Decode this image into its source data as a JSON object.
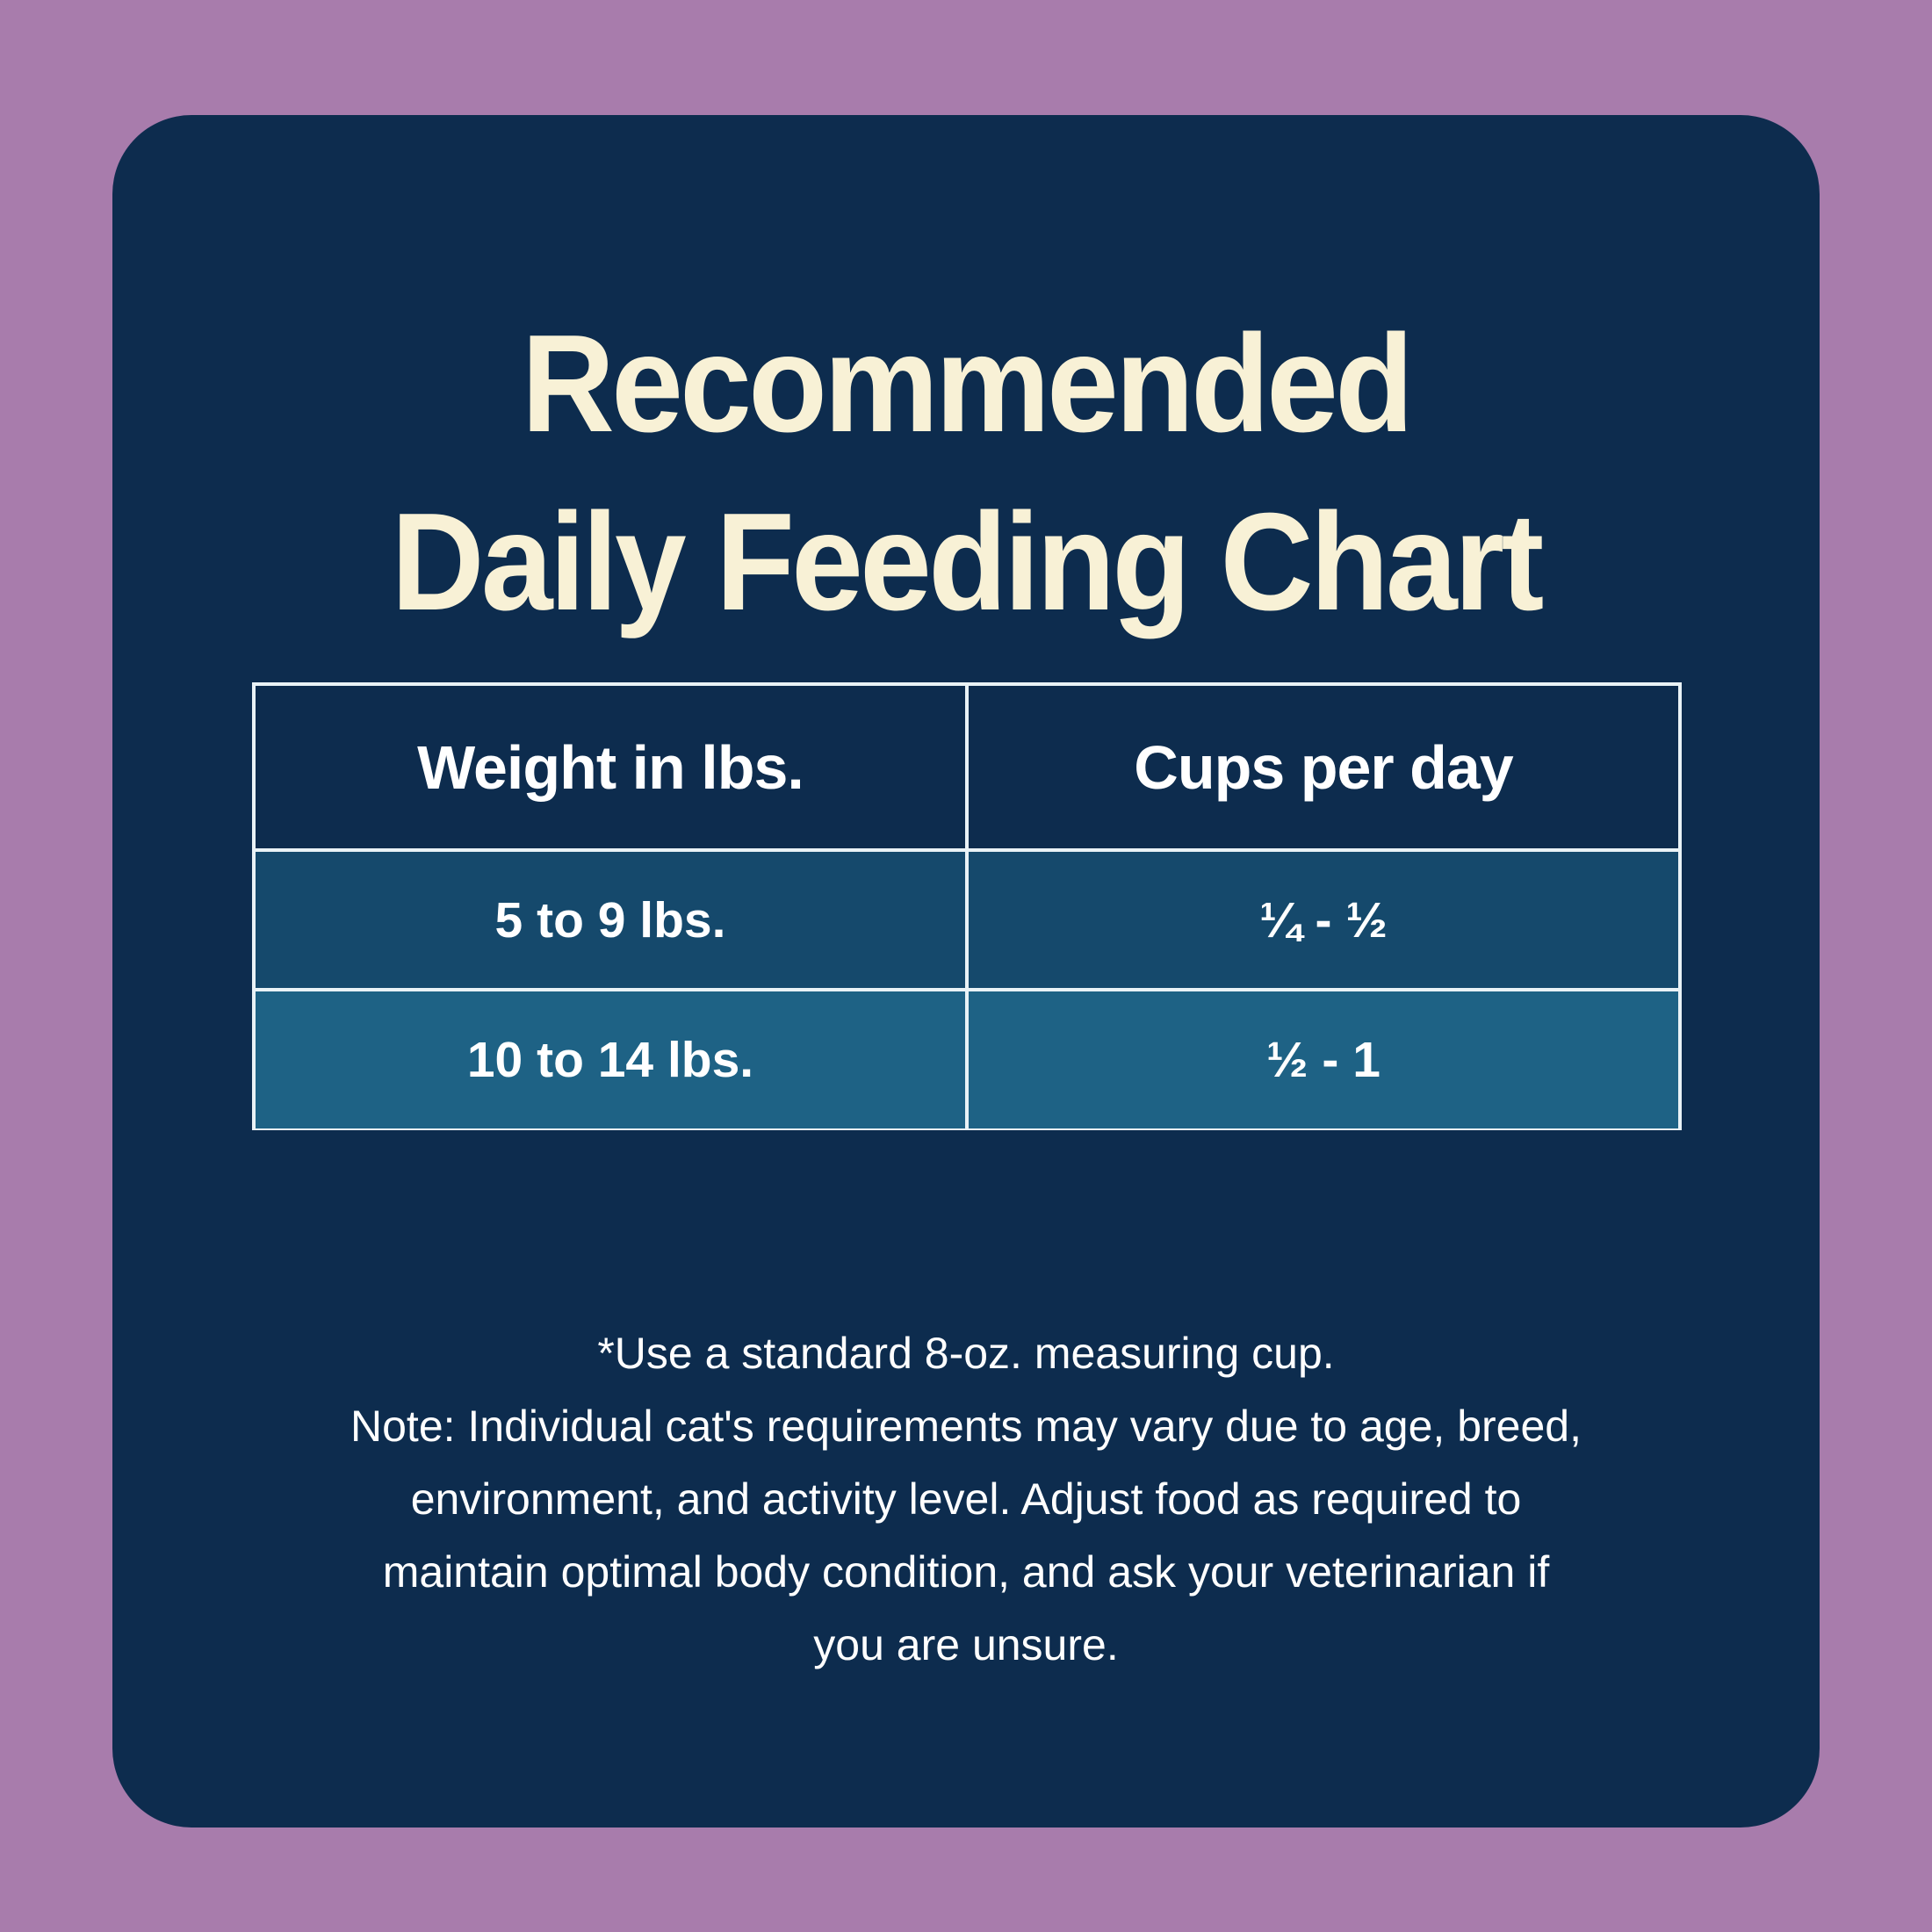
{
  "colors": {
    "background": "#a87cac",
    "card": "#0d2c4e",
    "row_odd": "#15496c",
    "row_even": "#1e6285",
    "title_text": "#f8f1d6",
    "table_border": "#e9f2f6",
    "body_text": "#ffffff"
  },
  "title": {
    "line1": "Recommended",
    "line2": "Daily Feeding Chart"
  },
  "table": {
    "headers": [
      "Weight in lbs.",
      "Cups per day"
    ],
    "rows": [
      {
        "weight": "5 to 9 lbs.",
        "cups": "¼ - ½"
      },
      {
        "weight": "10 to 14 lbs.",
        "cups": "½ - 1"
      }
    ]
  },
  "footnote": {
    "lines": [
      "*Use a standard 8-oz. measuring cup.",
      "Note: Individual cat's requirements may vary due to age, breed,",
      "environment, and activity level. Adjust food as required to",
      "maintain optimal body condition, and ask your veterinarian if",
      "you are unsure."
    ]
  },
  "chart_data": {
    "type": "table",
    "title": "Recommended Daily Feeding Chart",
    "columns": [
      "Weight in lbs.",
      "Cups per day"
    ],
    "rows": [
      [
        "5 to 9 lbs.",
        "¼ - ½"
      ],
      [
        "10 to 14 lbs.",
        "½ - 1"
      ]
    ],
    "note": "*Use a standard 8-oz. measuring cup. Note: Individual cat's requirements may vary due to age, breed, environment, and activity level. Adjust food as required to maintain optimal body condition, and ask your veterinarian if you are unsure."
  }
}
